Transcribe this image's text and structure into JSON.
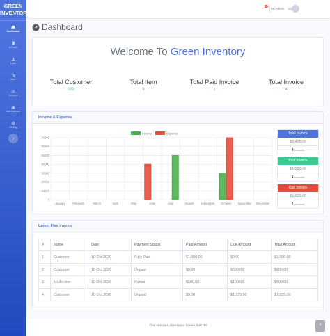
{
  "brand": {
    "line1": "GREEN",
    "line2": "INVENTORY"
  },
  "sidebar": {
    "items": [
      {
        "label": "Dashboard",
        "icon": "dashboard-icon"
      },
      {
        "label": "Invoice",
        "icon": "invoice-icon"
      },
      {
        "label": "User",
        "icon": "user-icon"
      },
      {
        "label": "Item",
        "icon": "cart-icon"
      },
      {
        "label": "Account",
        "icon": "account-icon"
      },
      {
        "label": "Administrator",
        "icon": "admin-icon"
      },
      {
        "label": "Setting",
        "icon": "gear-icon"
      }
    ],
    "toggle": "›"
  },
  "topbar": {
    "badge": "3+",
    "user": "Mr.Admin"
  },
  "page": {
    "title": "Dashboard"
  },
  "welcome": {
    "prefix": "Welcome To ",
    "accent": "Green Inventory",
    "stats": [
      {
        "label": "Total Customer",
        "value": "101"
      },
      {
        "label": "Total Item",
        "value": "9"
      },
      {
        "label": "Total Paid Invoice",
        "value": "1"
      },
      {
        "label": "Total Invoice",
        "value": "4"
      }
    ]
  },
  "chart_card": {
    "title": "Income & Expense"
  },
  "chart_data": {
    "type": "bar",
    "categories": [
      "January",
      "February",
      "March",
      "April",
      "May",
      "June",
      "July",
      "August",
      "September",
      "October",
      "November",
      "December"
    ],
    "series": [
      {
        "name": "Income",
        "color": "#4caf50",
        "values": [
          0,
          0,
          0,
          0,
          0,
          0,
          50000,
          0,
          0,
          30000,
          0,
          0
        ]
      },
      {
        "name": "Expense",
        "color": "#e74c3c",
        "values": [
          0,
          0,
          0,
          0,
          0,
          40000,
          0,
          0,
          0,
          70000,
          0,
          0
        ]
      }
    ],
    "yticks": [
      "0",
      "10000",
      "20000",
      "30000",
      "40000",
      "50000",
      "60000",
      "70000"
    ],
    "ylim": [
      0,
      70000
    ],
    "legend": "top-center"
  },
  "invoice_summary": [
    {
      "title": "Total Invoice",
      "amount": "$3,425.00",
      "count": "4",
      "unit": "Invoices",
      "color": "#4e73df"
    },
    {
      "title": "Paid Invoice",
      "amount": "$1,000.00",
      "count": "1",
      "unit": "Invoices",
      "color": "#3cc88f"
    },
    {
      "title": "Due Invoice",
      "amount": "$1,825.00",
      "count": "2",
      "unit": "Invoices",
      "color": "#e74a3b"
    }
  ],
  "table": {
    "title": "Latest Five Invoice",
    "columns": [
      "#",
      "Name",
      "Date",
      "Payment Status",
      "Paid Amount",
      "Due Amount",
      "Total Amount"
    ],
    "rows": [
      [
        "1",
        "Customer",
        "10 Oct 2020",
        "Fully Paid",
        "$1,000.00",
        "$0.00",
        "$1,000.00"
      ],
      [
        "2",
        "Customer",
        "10 Oct 2020",
        "Unpaid",
        "$0.00",
        "$600.00",
        "$600.00"
      ],
      [
        "3",
        "Moderator",
        "10 Oct 2020",
        "Partial",
        "$500.00",
        "$100.00",
        "$600.00"
      ],
      [
        "4",
        "Customer",
        "10 Oct 2020",
        "Unpaid",
        "$0.00",
        "$1,225.00",
        "$1,225.00"
      ]
    ]
  },
  "footer": {
    "text": "This site was developed Green Soft BD"
  },
  "scroll_top": "^"
}
